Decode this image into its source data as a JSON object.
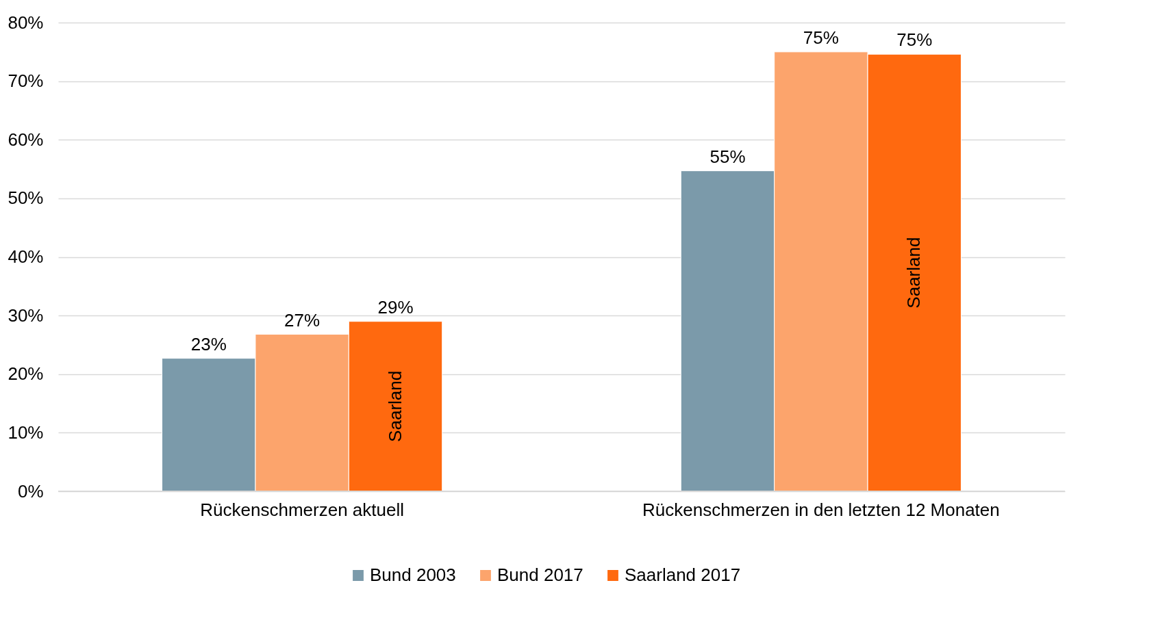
{
  "chart_data": {
    "type": "bar",
    "categories": [
      "Rückenschmerzen aktuell",
      "Rückenschmerzen in den letzten 12 Monaten"
    ],
    "series": [
      {
        "name": "Bund 2003",
        "color": "#7b9aaa",
        "values": [
          22.7,
          54.7
        ],
        "value_labels": [
          "23%",
          "55%"
        ]
      },
      {
        "name": "Bund 2017",
        "color": "#fca46c",
        "values": [
          26.8,
          75.0
        ],
        "value_labels": [
          "27%",
          "75%"
        ]
      },
      {
        "name": "Saarland 2017",
        "color": "#ff690f",
        "values": [
          29.0,
          74.6
        ],
        "value_labels": [
          "29%",
          "75%"
        ]
      }
    ],
    "ylim": [
      0,
      80
    ],
    "yticks": [
      {
        "value": 0,
        "label": "0%"
      },
      {
        "value": 10,
        "label": "10%"
      },
      {
        "value": 20,
        "label": "20%"
      },
      {
        "value": 30,
        "label": "30%"
      },
      {
        "value": 40,
        "label": "40%"
      },
      {
        "value": 50,
        "label": "50%"
      },
      {
        "value": 60,
        "label": "60%"
      },
      {
        "value": 70,
        "label": "70%"
      },
      {
        "value": 80,
        "label": "80%"
      }
    ],
    "annotations": [
      "Saarland",
      "Saarland"
    ],
    "grid": "y",
    "legend": "bottom"
  }
}
